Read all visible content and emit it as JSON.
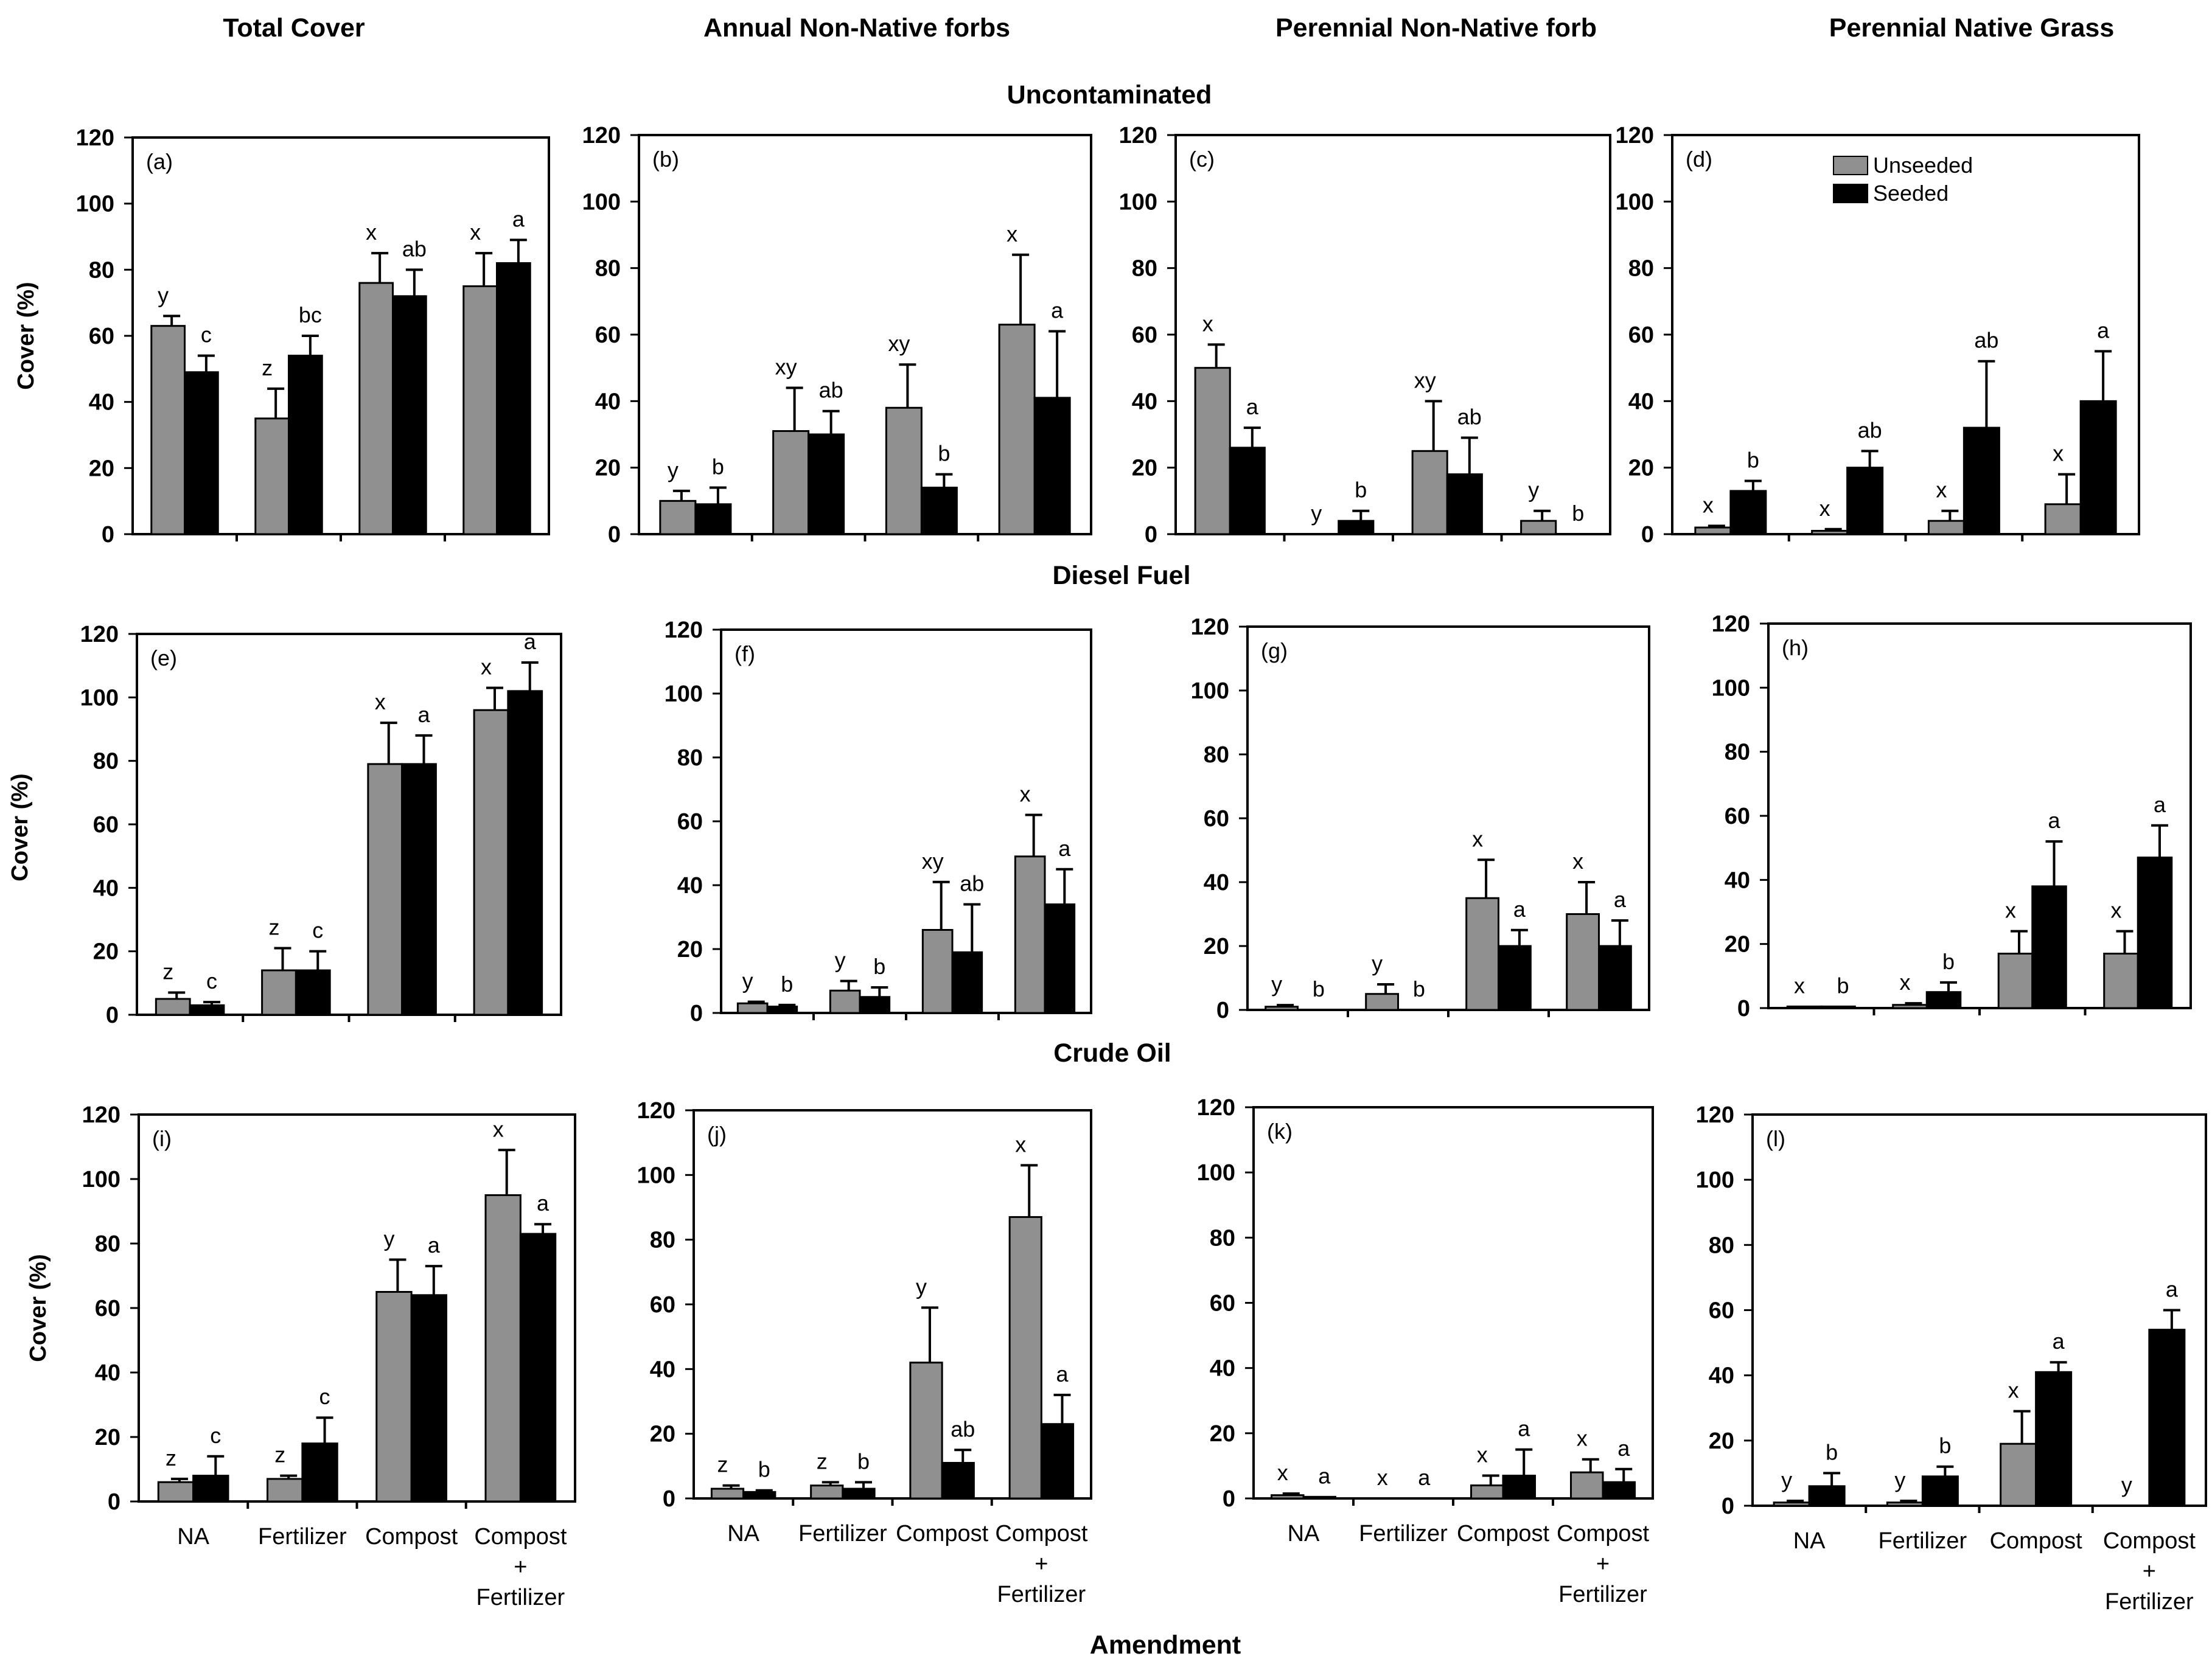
{
  "column_titles": [
    "Total Cover",
    "Annual Non-Native forbs",
    "Perennial Non-Native forb",
    "Perennial Native Grass"
  ],
  "row_titles": [
    "Uncontaminated",
    "Diesel Fuel",
    "Crude Oil"
  ],
  "x_axis_title": "Amendment",
  "y_axis_label": "Cover (%)",
  "legend": [
    {
      "name": "Unseeded",
      "color": "#909090"
    },
    {
      "name": "Seeded",
      "color": "#000000"
    }
  ],
  "colors": {
    "unseeded": "#909090",
    "seeded": "#000000",
    "frame": "#000000"
  },
  "chart_data": [
    {
      "panel": "(a)",
      "type": "bar",
      "title": "Total Cover",
      "row": "Uncontaminated",
      "ylabel": "Cover (%)",
      "ylim": [
        0,
        120
      ],
      "yticks": [
        0,
        20,
        40,
        60,
        80,
        100,
        120
      ],
      "categories": [
        "NA",
        "Fertilizer",
        "Compost",
        "Compost + Fertilizer"
      ],
      "series": [
        {
          "name": "Unseeded",
          "values": [
            63,
            35,
            76,
            75
          ],
          "errors": [
            3,
            9,
            9,
            10
          ],
          "letters": [
            "y",
            "z",
            "x",
            "x"
          ]
        },
        {
          "name": "Seeded",
          "values": [
            49,
            54,
            72,
            82
          ],
          "errors": [
            5,
            6,
            8,
            7
          ],
          "letters": [
            "c",
            "bc",
            "ab",
            "a"
          ]
        }
      ]
    },
    {
      "panel": "(b)",
      "type": "bar",
      "title": "Annual Non-Native forbs",
      "row": "Uncontaminated",
      "ylim": [
        0,
        120
      ],
      "yticks": [
        0,
        20,
        40,
        60,
        80,
        100,
        120
      ],
      "categories": [
        "NA",
        "Fertilizer",
        "Compost",
        "Compost + Fertilizer"
      ],
      "series": [
        {
          "name": "Unseeded",
          "values": [
            10,
            31,
            38,
            63
          ],
          "errors": [
            3,
            13,
            13,
            21
          ],
          "letters": [
            "y",
            "xy",
            "xy",
            "x"
          ]
        },
        {
          "name": "Seeded",
          "values": [
            9,
            30,
            14,
            41
          ],
          "errors": [
            5,
            7,
            4,
            20
          ],
          "letters": [
            "b",
            "ab",
            "b",
            "a"
          ]
        }
      ]
    },
    {
      "panel": "(c)",
      "type": "bar",
      "title": "Perennial Non-Native forb",
      "row": "Uncontaminated",
      "ylim": [
        0,
        120
      ],
      "yticks": [
        0,
        20,
        40,
        60,
        80,
        100,
        120
      ],
      "categories": [
        "NA",
        "Fertilizer",
        "Compost",
        "Compost + Fertilizer"
      ],
      "series": [
        {
          "name": "Unseeded",
          "values": [
            50,
            0,
            25,
            4
          ],
          "errors": [
            7,
            0,
            15,
            3
          ],
          "letters": [
            "x",
            "y",
            "xy",
            "y"
          ]
        },
        {
          "name": "Seeded",
          "values": [
            26,
            4,
            18,
            0
          ],
          "errors": [
            6,
            3,
            11,
            0
          ],
          "letters": [
            "a",
            "b",
            "ab",
            "b"
          ]
        }
      ]
    },
    {
      "panel": "(d)",
      "type": "bar",
      "title": "Perennial Native Grass",
      "row": "Uncontaminated",
      "ylim": [
        0,
        120
      ],
      "yticks": [
        0,
        20,
        40,
        60,
        80,
        100,
        120
      ],
      "categories": [
        "NA",
        "Fertilizer",
        "Compost",
        "Compost + Fertilizer"
      ],
      "series": [
        {
          "name": "Unseeded",
          "values": [
            2,
            1,
            4,
            9
          ],
          "errors": [
            0.5,
            0.5,
            3,
            9
          ],
          "letters": [
            "x",
            "x",
            "x",
            "x"
          ]
        },
        {
          "name": "Seeded",
          "values": [
            13,
            20,
            32,
            40
          ],
          "errors": [
            3,
            5,
            20,
            15
          ],
          "letters": [
            "b",
            "ab",
            "ab",
            "a"
          ]
        }
      ]
    },
    {
      "panel": "(e)",
      "type": "bar",
      "title": "Total Cover",
      "row": "Diesel Fuel",
      "ylabel": "Cover (%)",
      "ylim": [
        0,
        120
      ],
      "yticks": [
        0,
        20,
        40,
        60,
        80,
        100,
        120
      ],
      "categories": [
        "NA",
        "Fertilizer",
        "Compost",
        "Compost + Fertilizer"
      ],
      "series": [
        {
          "name": "Unseeded",
          "values": [
            5,
            14,
            79,
            96
          ],
          "errors": [
            2,
            7,
            13,
            7
          ],
          "letters": [
            "z",
            "z",
            "x",
            "x"
          ]
        },
        {
          "name": "Seeded",
          "values": [
            3,
            14,
            79,
            102
          ],
          "errors": [
            1,
            6,
            9,
            9
          ],
          "letters": [
            "c",
            "c",
            "a",
            "a"
          ]
        }
      ]
    },
    {
      "panel": "(f)",
      "type": "bar",
      "title": "Annual Non-Native forbs",
      "row": "Diesel Fuel",
      "ylim": [
        0,
        120
      ],
      "yticks": [
        0,
        20,
        40,
        60,
        80,
        100,
        120
      ],
      "categories": [
        "NA",
        "Fertilizer",
        "Compost",
        "Compost + Fertilizer"
      ],
      "series": [
        {
          "name": "Unseeded",
          "values": [
            3,
            7,
            26,
            49
          ],
          "errors": [
            0.5,
            3,
            15,
            13
          ],
          "letters": [
            "y",
            "y",
            "xy",
            "x"
          ]
        },
        {
          "name": "Seeded",
          "values": [
            2,
            5,
            19,
            34
          ],
          "errors": [
            0.5,
            3,
            15,
            11
          ],
          "letters": [
            "b",
            "b",
            "ab",
            "a"
          ]
        }
      ]
    },
    {
      "panel": "(g)",
      "type": "bar",
      "title": "Perennial Non-Native forb",
      "row": "Diesel Fuel",
      "ylim": [
        0,
        120
      ],
      "yticks": [
        0,
        20,
        40,
        60,
        80,
        100,
        120
      ],
      "categories": [
        "NA",
        "Fertilizer",
        "Compost",
        "Compost + Fertilizer"
      ],
      "series": [
        {
          "name": "Unseeded",
          "values": [
            1,
            5,
            35,
            30
          ],
          "errors": [
            0.5,
            3,
            12,
            10
          ],
          "letters": [
            "y",
            "y",
            "x",
            "x"
          ]
        },
        {
          "name": "Seeded",
          "values": [
            0,
            0,
            20,
            20
          ],
          "errors": [
            0,
            0,
            5,
            8
          ],
          "letters": [
            "b",
            "b",
            "a",
            "a"
          ]
        }
      ]
    },
    {
      "panel": "(h)",
      "type": "bar",
      "title": "Perennial Native Grass",
      "row": "Diesel Fuel",
      "ylim": [
        0,
        120
      ],
      "yticks": [
        0,
        20,
        40,
        60,
        80,
        100,
        120
      ],
      "categories": [
        "NA",
        "Fertilizer",
        "Compost",
        "Compost + Fertilizer"
      ],
      "series": [
        {
          "name": "Unseeded",
          "values": [
            0.5,
            1,
            17,
            17
          ],
          "errors": [
            0,
            0.5,
            7,
            7
          ],
          "letters": [
            "x",
            "x",
            "x",
            "x"
          ]
        },
        {
          "name": "Seeded",
          "values": [
            0.5,
            5,
            38,
            47
          ],
          "errors": [
            0,
            3,
            14,
            10
          ],
          "letters": [
            "b",
            "b",
            "a",
            "a"
          ]
        }
      ]
    },
    {
      "panel": "(i)",
      "type": "bar",
      "title": "Total Cover",
      "row": "Crude Oil",
      "ylabel": "Cover (%)",
      "ylim": [
        0,
        120
      ],
      "yticks": [
        0,
        20,
        40,
        60,
        80,
        100,
        120
      ],
      "categories": [
        "NA",
        "Fertilizer",
        "Compost",
        "Compost + Fertilizer"
      ],
      "series": [
        {
          "name": "Unseeded",
          "values": [
            6,
            7,
            65,
            95
          ],
          "errors": [
            1,
            1,
            10,
            14
          ],
          "letters": [
            "z",
            "z",
            "y",
            "x"
          ]
        },
        {
          "name": "Seeded",
          "values": [
            8,
            18,
            64,
            83
          ],
          "errors": [
            6,
            8,
            9,
            3
          ],
          "letters": [
            "c",
            "c",
            "a",
            "a"
          ]
        }
      ]
    },
    {
      "panel": "(j)",
      "type": "bar",
      "title": "Annual Non-Native forbs",
      "row": "Crude Oil",
      "ylim": [
        0,
        120
      ],
      "yticks": [
        0,
        20,
        40,
        60,
        80,
        100,
        120
      ],
      "categories": [
        "NA",
        "Fertilizer",
        "Compost",
        "Compost + Fertilizer"
      ],
      "series": [
        {
          "name": "Unseeded",
          "values": [
            3,
            4,
            42,
            87
          ],
          "errors": [
            1,
            1,
            17,
            16
          ],
          "letters": [
            "z",
            "z",
            "y",
            "x"
          ]
        },
        {
          "name": "Seeded",
          "values": [
            2,
            3,
            11,
            23
          ],
          "errors": [
            0.5,
            2,
            4,
            9
          ],
          "letters": [
            "b",
            "b",
            "ab",
            "a"
          ]
        }
      ]
    },
    {
      "panel": "(k)",
      "type": "bar",
      "title": "Perennial Non-Native forb",
      "row": "Crude Oil",
      "ylim": [
        0,
        120
      ],
      "yticks": [
        0,
        20,
        40,
        60,
        80,
        100,
        120
      ],
      "categories": [
        "NA",
        "Fertilizer",
        "Compost",
        "Compost + Fertilizer"
      ],
      "series": [
        {
          "name": "Unseeded",
          "values": [
            1,
            0,
            4,
            8
          ],
          "errors": [
            0.5,
            0,
            3,
            4
          ],
          "letters": [
            "x",
            "x",
            "x",
            "x"
          ]
        },
        {
          "name": "Seeded",
          "values": [
            0.5,
            0,
            7,
            5
          ],
          "errors": [
            0,
            0,
            8,
            4
          ],
          "letters": [
            "a",
            "a",
            "a",
            "a"
          ]
        }
      ]
    },
    {
      "panel": "(l)",
      "type": "bar",
      "title": "Perennial Native Grass",
      "row": "Crude Oil",
      "ylim": [
        0,
        120
      ],
      "yticks": [
        0,
        20,
        40,
        60,
        80,
        100,
        120
      ],
      "categories": [
        "NA",
        "Fertilizer",
        "Compost",
        "Compost + Fertilizer"
      ],
      "series": [
        {
          "name": "Unseeded",
          "values": [
            1,
            1,
            19,
            0
          ],
          "errors": [
            0.5,
            0.5,
            10,
            0
          ],
          "letters": [
            "y",
            "y",
            "x",
            "y"
          ]
        },
        {
          "name": "Seeded",
          "values": [
            6,
            9,
            41,
            54
          ],
          "errors": [
            4,
            3,
            3,
            6
          ],
          "letters": [
            "b",
            "b",
            "a",
            "a"
          ]
        }
      ]
    }
  ]
}
